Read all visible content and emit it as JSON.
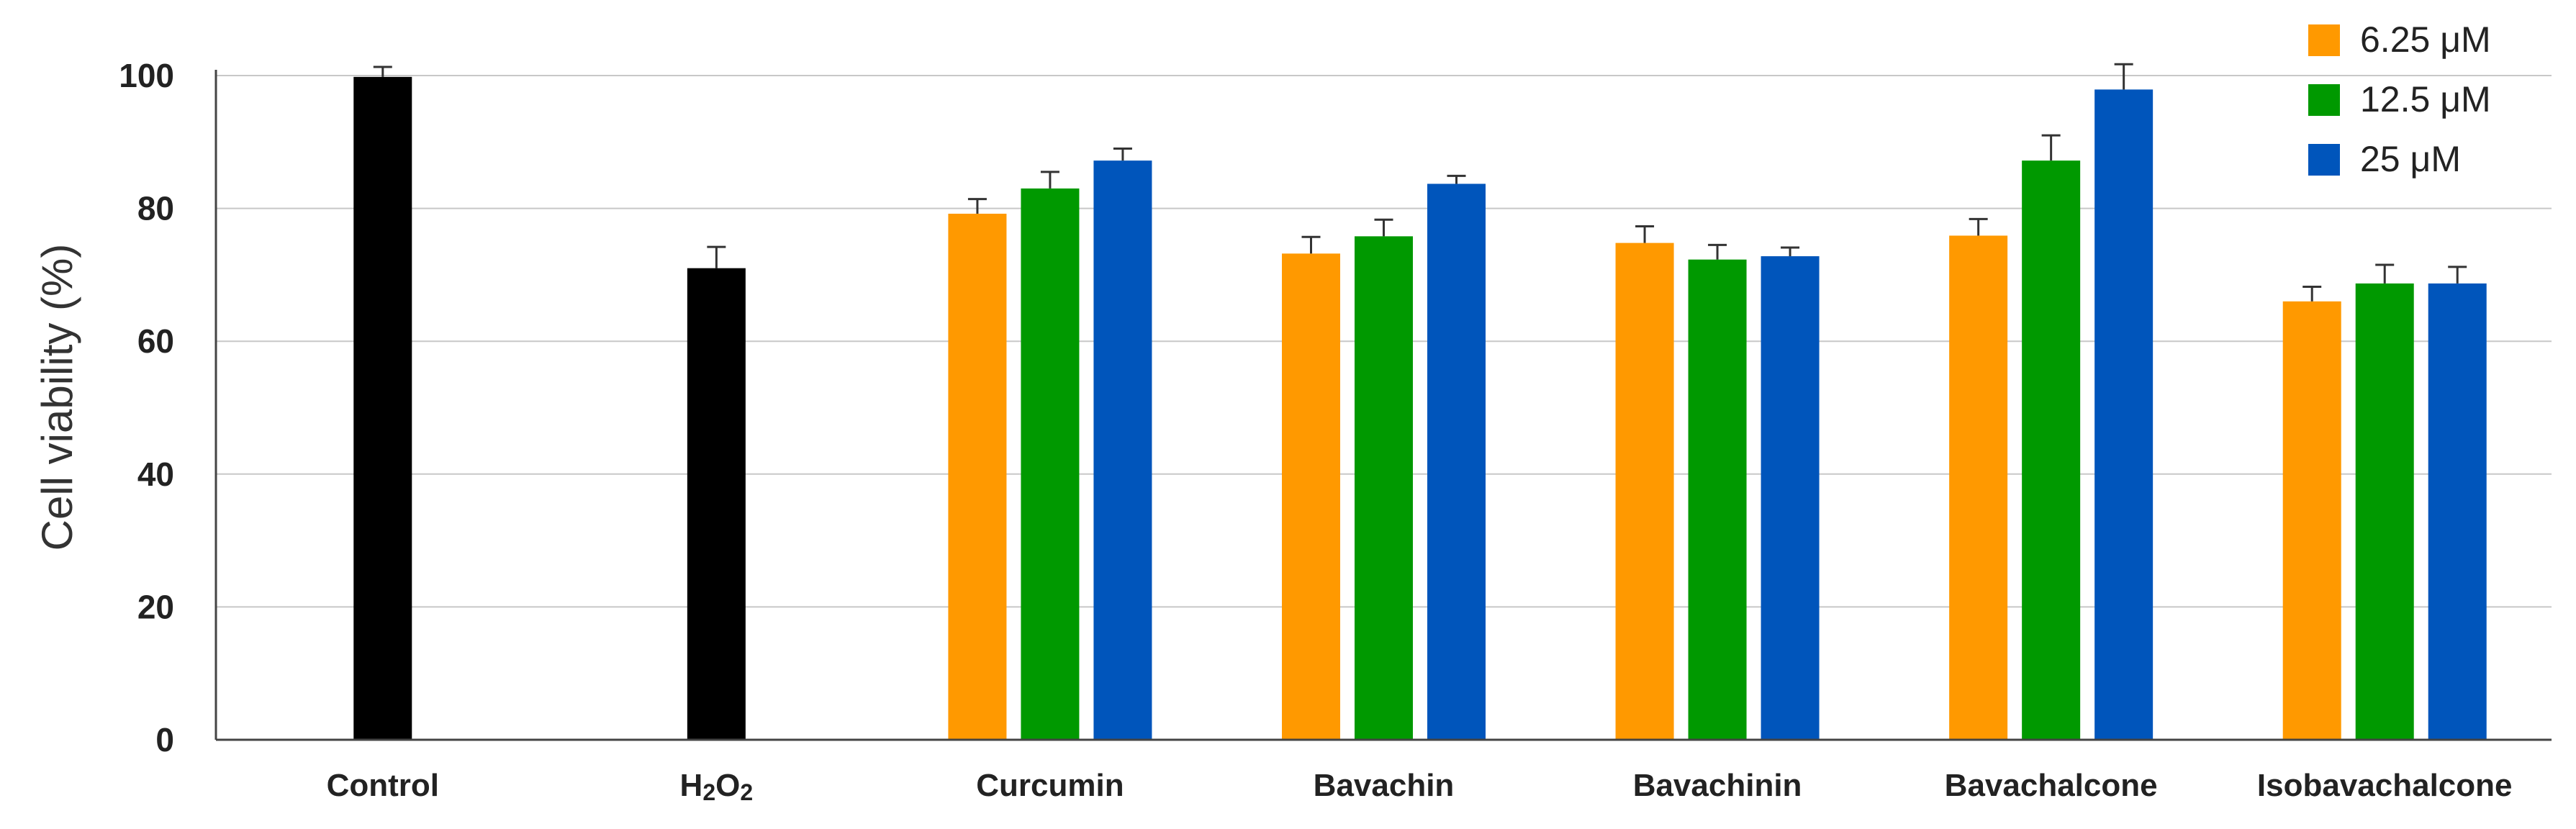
{
  "chart_data": {
    "type": "bar",
    "ylabel": "Cell viability (%)",
    "xlabel": "",
    "ylim": [
      0,
      100
    ],
    "yticks": [
      "0",
      "20",
      "40",
      "60",
      "80",
      "100"
    ],
    "grid": true,
    "legend_position": "top-right",
    "colors": {
      "control": "#000000",
      "s6_25": "#ff9900",
      "s12_5": "#009900",
      "s25": "#0055bb",
      "grid": "#c8c8c8",
      "axis": "#444444",
      "error": "#333333"
    },
    "legend": [
      {
        "name": "6.25 μM",
        "color": "#ff9900"
      },
      {
        "name": "12.5 μM",
        "color": "#009900"
      },
      {
        "name": "25 μM",
        "color": "#0055bb"
      }
    ],
    "categories": [
      {
        "label": "Control",
        "bars": [
          {
            "value": 99.8,
            "error": 1.5,
            "color": "#000000"
          }
        ]
      },
      {
        "label": "H2O2",
        "label_main": "H",
        "label_sub1": "2",
        "label_mid": "O",
        "label_sub2": "2",
        "bars": [
          {
            "value": 71.0,
            "error": 3.2,
            "color": "#000000"
          }
        ]
      },
      {
        "label": "Curcumin",
        "bars": [
          {
            "series": "6.25 μM",
            "value": 79.2,
            "error": 2.2,
            "color": "#ff9900"
          },
          {
            "series": "12.5 μM",
            "value": 83.0,
            "error": 2.5,
            "color": "#009900"
          },
          {
            "series": "25 μM",
            "value": 87.2,
            "error": 1.8,
            "color": "#0055bb"
          }
        ]
      },
      {
        "label": "Bavachin",
        "bars": [
          {
            "series": "6.25 μM",
            "value": 73.2,
            "error": 2.5,
            "color": "#ff9900"
          },
          {
            "series": "12.5 μM",
            "value": 75.8,
            "error": 2.5,
            "color": "#009900"
          },
          {
            "series": "25 μM",
            "value": 83.7,
            "error": 1.2,
            "color": "#0055bb"
          }
        ]
      },
      {
        "label": "Bavachinin",
        "bars": [
          {
            "series": "6.25 μM",
            "value": 74.8,
            "error": 2.5,
            "color": "#ff9900"
          },
          {
            "series": "12.5 μM",
            "value": 72.3,
            "error": 2.2,
            "color": "#009900"
          },
          {
            "series": "25 μM",
            "value": 72.8,
            "error": 1.3,
            "color": "#0055bb"
          }
        ]
      },
      {
        "label": "Bavachalcone",
        "bars": [
          {
            "series": "6.25 μM",
            "value": 75.9,
            "error": 2.5,
            "color": "#ff9900"
          },
          {
            "series": "12.5 μM",
            "value": 87.2,
            "error": 3.8,
            "color": "#009900"
          },
          {
            "series": "25 μM",
            "value": 97.9,
            "error": 3.8,
            "color": "#0055bb"
          }
        ]
      },
      {
        "label": "Isobavachalcone",
        "bars": [
          {
            "series": "6.25 μM",
            "value": 66.0,
            "error": 2.2,
            "color": "#ff9900"
          },
          {
            "series": "12.5 μM",
            "value": 68.7,
            "error": 2.8,
            "color": "#009900"
          },
          {
            "series": "25 μM",
            "value": 68.7,
            "error": 2.5,
            "color": "#0055bb"
          }
        ]
      }
    ]
  }
}
